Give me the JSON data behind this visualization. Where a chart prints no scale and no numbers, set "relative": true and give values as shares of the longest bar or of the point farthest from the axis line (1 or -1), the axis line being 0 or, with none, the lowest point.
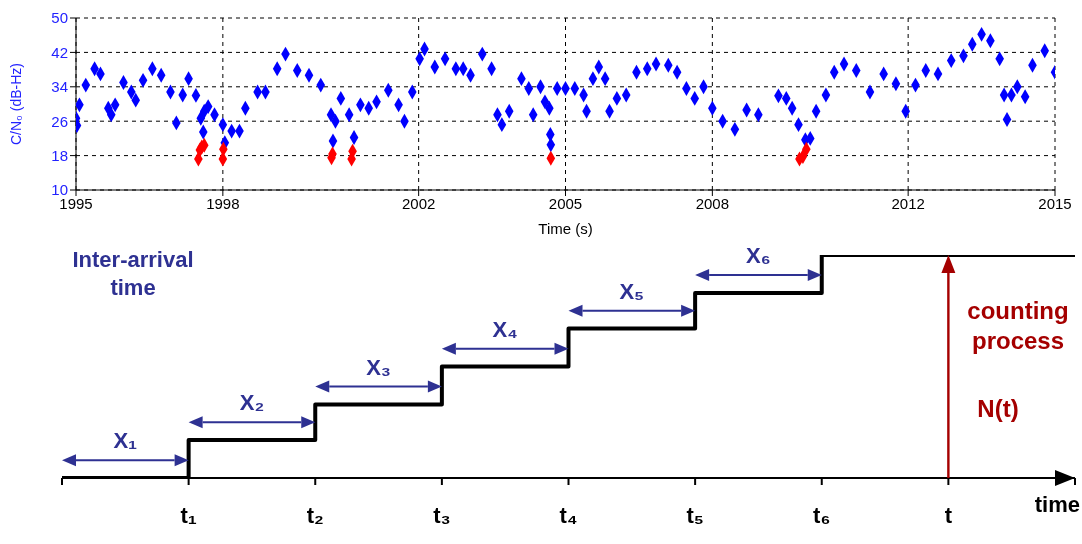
{
  "chart_data": [
    {
      "type": "scatter",
      "xlabel": "Time (s)",
      "ylabel": "C/N₀ (dB-Hz)",
      "xlim": [
        1995,
        2015
      ],
      "ylim": [
        10,
        50
      ],
      "xticks": [
        1995,
        1998,
        2002,
        2005,
        2008,
        2012,
        2015
      ],
      "yticks": [
        10,
        18,
        26,
        34,
        42,
        50
      ],
      "grid": true,
      "marker": "diamond",
      "series": [
        {
          "color": "#0000ff",
          "x": [
            1995.0,
            1995.02,
            1995.07,
            1995.2,
            1995.38,
            1995.5,
            1995.66,
            1995.72,
            1995.8,
            1995.97,
            1996.13,
            1996.22,
            1996.37,
            1996.56,
            1996.74,
            1996.93,
            1997.05,
            1997.18,
            1997.3,
            1997.45,
            1997.55,
            1997.6,
            1997.62,
            1997.7,
            1997.83,
            1998.0,
            1998.04,
            1998.18,
            1998.34,
            1998.46,
            1998.71,
            1998.87,
            1999.11,
            1999.28,
            1999.52,
            1999.76,
            2000.0,
            2000.21,
            2000.25,
            2000.3,
            2000.41,
            2000.58,
            2000.68,
            2000.81,
            2000.98,
            2001.14,
            2001.38,
            2001.59,
            2001.71,
            2001.87,
            2002.02,
            2002.12,
            2002.33,
            2002.54,
            2002.76,
            2002.91,
            2003.06,
            2003.3,
            2003.49,
            2003.61,
            2003.7,
            2003.85,
            2004.1,
            2004.25,
            2004.34,
            2004.49,
            2004.58,
            2004.67,
            2004.69,
            2004.7,
            2004.83,
            2005.0,
            2005.19,
            2005.37,
            2005.43,
            2005.56,
            2005.68,
            2005.81,
            2005.9,
            2006.05,
            2006.24,
            2006.45,
            2006.67,
            2006.85,
            2007.1,
            2007.28,
            2007.47,
            2007.64,
            2007.82,
            2008.0,
            2008.21,
            2008.46,
            2008.7,
            2008.94,
            2009.35,
            2009.51,
            2009.63,
            2009.76,
            2009.9,
            2010.0,
            2010.12,
            2010.32,
            2010.49,
            2010.69,
            2010.94,
            2011.22,
            2011.5,
            2011.75,
            2011.95,
            2012.15,
            2012.36,
            2012.61,
            2012.88,
            2013.13,
            2013.31,
            2013.5,
            2013.68,
            2013.87,
            2013.96,
            2014.02,
            2014.11,
            2014.23,
            2014.39,
            2014.54,
            2014.79,
            2015.0
          ],
          "values": [
            26.7,
            25,
            29.8,
            34.4,
            38.2,
            37,
            29,
            27.5,
            29.8,
            35,
            32.8,
            30.9,
            35.5,
            38.2,
            36.7,
            32.8,
            25.6,
            32.1,
            35.9,
            32,
            26.7,
            23.5,
            28.3,
            29.4,
            27.5,
            25.2,
            21,
            23.7,
            23.7,
            29,
            32.8,
            32.8,
            38.2,
            41.6,
            37.8,
            36.7,
            34.4,
            27.5,
            21.4,
            26,
            31.3,
            27.5,
            22.2,
            29.8,
            29,
            30.5,
            33.2,
            29.8,
            26,
            32.8,
            40.5,
            42.8,
            38.6,
            40.5,
            38.2,
            38.2,
            36.7,
            41.6,
            38.2,
            27.5,
            25.2,
            28.3,
            35.9,
            33.6,
            27.5,
            34,
            30.5,
            29,
            22.9,
            20.5,
            33.6,
            33.6,
            33.6,
            32.1,
            28.3,
            35.9,
            38.6,
            35.9,
            28.3,
            31.3,
            32.1,
            37.4,
            38.2,
            39.3,
            39,
            37.4,
            33.6,
            31.3,
            34,
            29,
            26,
            24.1,
            28.6,
            27.5,
            31.9,
            31.3,
            29,
            25.2,
            21.7,
            22,
            28.3,
            32.1,
            37.4,
            39.3,
            37.8,
            32.8,
            37,
            34.7,
            28.3,
            34.4,
            37.8,
            37,
            40.1,
            41.2,
            43.9,
            46.2,
            44.7,
            40.5,
            32.1,
            26.4,
            32.1,
            34,
            31.7,
            39,
            42.4,
            37.4
          ]
        },
        {
          "color": "#ff0000",
          "x": [
            1997.5,
            1997.53,
            1997.57,
            1997.62,
            1998.0,
            1998.01,
            2000.22,
            2000.24,
            2000.63,
            2000.65,
            2004.7,
            2009.78,
            2009.85,
            2009.92
          ],
          "values": [
            17.2,
            19.3,
            20,
            20.4,
            17.2,
            19.5,
            17.5,
            18.4,
            17.2,
            19,
            17.4,
            17.2,
            17.8,
            19.5
          ]
        }
      ]
    },
    {
      "type": "step",
      "relative": true,
      "xlabel": "time",
      "categories": [
        null,
        "t₁",
        "t₂",
        "t₃",
        "t₄",
        "t₅",
        "t₆",
        "t",
        null
      ],
      "values": [
        0,
        0.17,
        0.33,
        0.5,
        0.67,
        0.83,
        1,
        1,
        1
      ],
      "color": "#000000",
      "annotations": [
        "Inter-arrival time",
        "counting process",
        "N(t)",
        "X₁",
        "X₂",
        "X₃",
        "X₄",
        "X₅",
        "X₆"
      ]
    }
  ]
}
